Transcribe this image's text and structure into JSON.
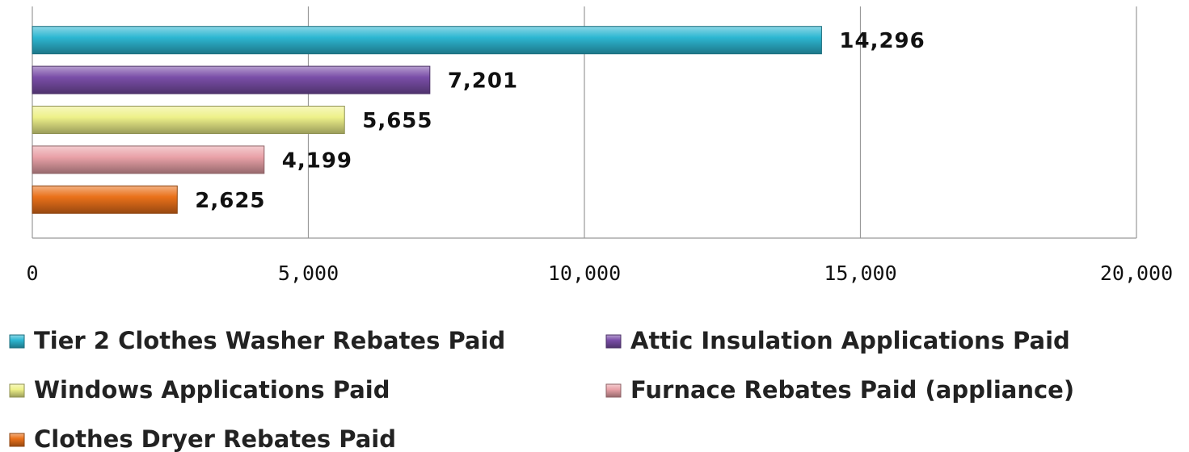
{
  "chart_data": {
    "type": "bar",
    "orientation": "horizontal",
    "series": [
      {
        "name": "Tier 2 Clothes Washer Rebates Paid",
        "color": "#2db7d2",
        "values": [
          14296
        ],
        "value_labels": [
          "14,296"
        ]
      },
      {
        "name": "Attic Insulation Applications Paid",
        "color": "#7a4ea8",
        "values": [
          7201
        ],
        "value_labels": [
          "7,201"
        ]
      },
      {
        "name": "Windows Applications Paid",
        "color": "#eef18a",
        "values": [
          5655
        ],
        "value_labels": [
          "5,655"
        ]
      },
      {
        "name": "Furnace Rebates Paid (appliance)",
        "color": "#e9a2a8",
        "values": [
          4199
        ],
        "value_labels": [
          "4,199"
        ]
      },
      {
        "name": "Clothes Dryer Rebates Paid",
        "color": "#ea711a",
        "values": [
          2625
        ],
        "value_labels": [
          "2,625"
        ]
      }
    ],
    "xlim": [
      0,
      20000
    ],
    "xticks": [
      0,
      {
        "value": 5000,
        "label": "5,000"
      },
      {
        "value": 10000,
        "label": "10,000"
      },
      {
        "value": 15000,
        "label": "15,000"
      },
      {
        "value": 20000,
        "label": "20,000"
      }
    ],
    "grid": true,
    "legend": "bottom"
  }
}
